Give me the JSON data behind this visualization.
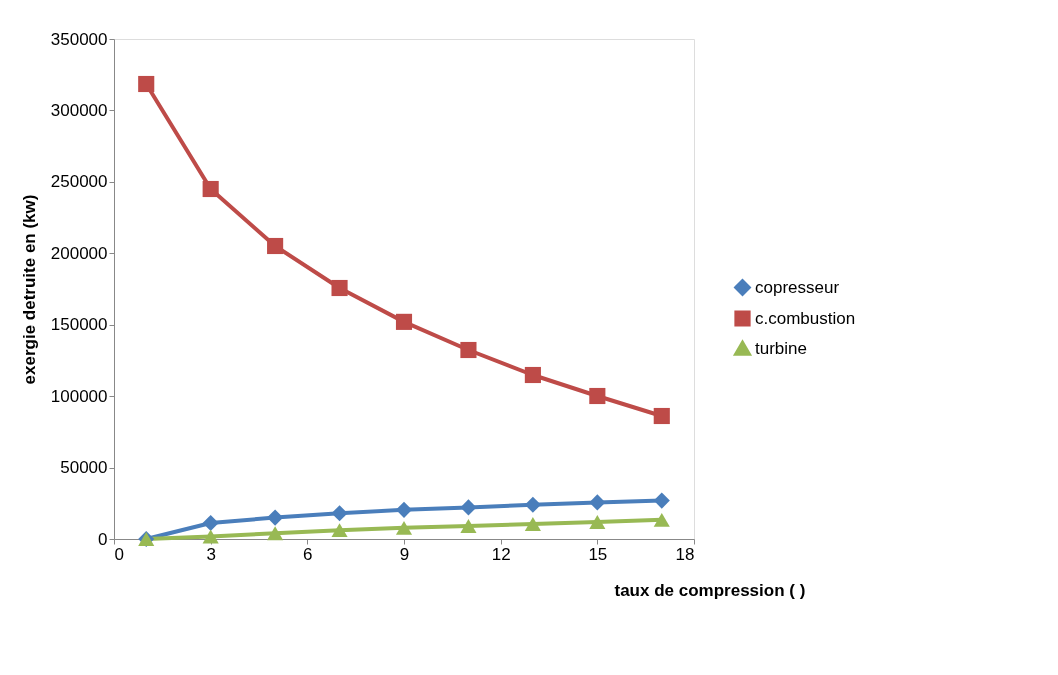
{
  "chart_data": {
    "type": "line",
    "xlabel": "taux de compression (     )",
    "ylabel": "exergie detruite en (kw)",
    "x": [
      1,
      3,
      5,
      7,
      9,
      11,
      13,
      15,
      17
    ],
    "series": [
      {
        "name": "copresseur",
        "color": "#4a7ebb",
        "marker": "diamond",
        "values": [
          0,
          11200,
          15000,
          18000,
          20400,
          22100,
          24000,
          25600,
          26900
        ]
      },
      {
        "name": "c.combustion",
        "color": "#be4b48",
        "marker": "square",
        "values": [
          318500,
          245000,
          205100,
          175700,
          152000,
          132300,
          114800,
          100100,
          86100
        ]
      },
      {
        "name": "turbine",
        "color": "#98b954",
        "marker": "triangle",
        "values": [
          0,
          1800,
          4000,
          6200,
          7800,
          9100,
          10500,
          11900,
          13400
        ]
      }
    ],
    "xlim": [
      0,
      18
    ],
    "xticks": [
      0,
      3,
      6,
      9,
      12,
      15,
      18
    ],
    "ylim": [
      0,
      350000
    ],
    "yticks": [
      0,
      50000,
      100000,
      150000,
      200000,
      250000,
      300000,
      350000
    ],
    "grid": false,
    "legend": "right",
    "line_style": "solid"
  }
}
